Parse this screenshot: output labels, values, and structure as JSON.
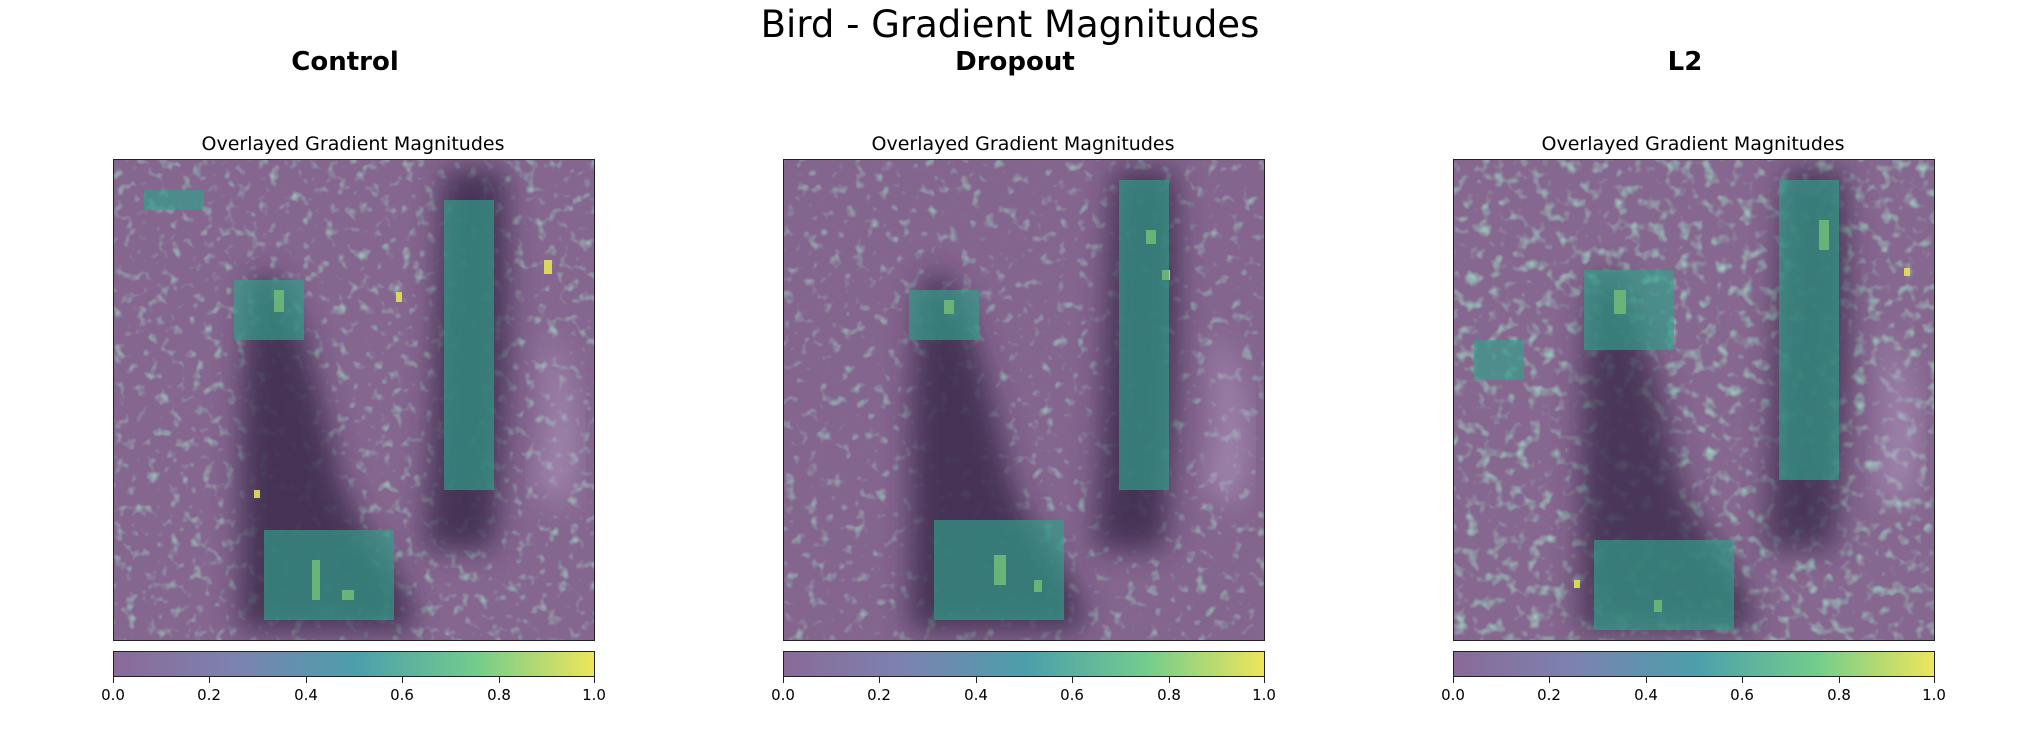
{
  "figure": {
    "suptitle": "Bird - Gradient Magnitudes"
  },
  "panels": [
    {
      "title": "Control",
      "subtitle": "Overlayed Gradient Magnitudes",
      "colorbar": {
        "ticks": [
          "0.0",
          "0.2",
          "0.4",
          "0.6",
          "0.8",
          "1.0"
        ]
      }
    },
    {
      "title": "Dropout",
      "subtitle": "Overlayed Gradient Magnitudes",
      "colorbar": {
        "ticks": [
          "0.0",
          "0.2",
          "0.4",
          "0.6",
          "0.8",
          "1.0"
        ]
      }
    },
    {
      "title": "L2",
      "subtitle": "Overlayed Gradient Magnitudes",
      "colorbar": {
        "ticks": [
          "0.0",
          "0.2",
          "0.4",
          "0.6",
          "0.8",
          "1.0"
        ]
      }
    }
  ],
  "colors": {
    "cmap_low": "#8a6a98",
    "cmap_mid": "#3b9a93",
    "cmap_high": "#f0e65a",
    "background": "#ffffff"
  }
}
